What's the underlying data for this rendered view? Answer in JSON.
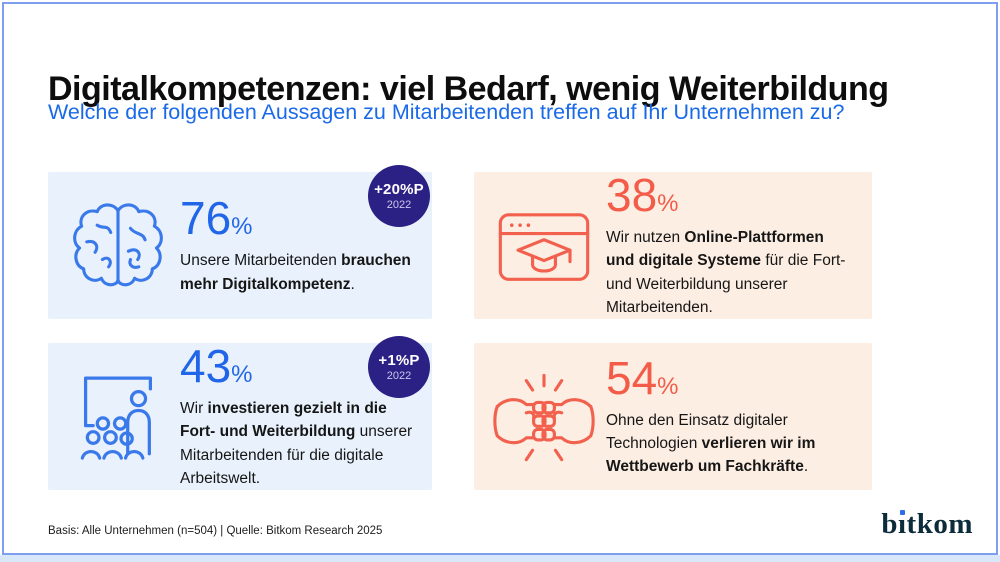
{
  "header": {
    "title": "Digitalkompetenzen: viel Bedarf, wenig Weiterbildung",
    "subtitle": "Welche der folgenden Aussagen zu Mitarbeitenden treffen auf Ihr Unternehmen zu?"
  },
  "chart_data": {
    "type": "table",
    "title": "Digitalkompetenzen: viel Bedarf, wenig Weiterbildung",
    "subtitle": "Welche der folgenden Aussagen zu Mitarbeitenden treffen auf Ihr Unternehmen zu?",
    "categories": [
      "Unsere Mitarbeitenden brauchen mehr Digitalkompetenz.",
      "Wir nutzen Online-Plattformen und digitale Systeme für die Fort- und Weiterbildung unserer Mitarbeitenden.",
      "Wir investieren gezielt in die Fort- und Weiterbildung unserer Mitarbeitenden für die digitale Arbeitswelt.",
      "Ohne den Einsatz digitaler Technologien verlieren wir im Wettbewerb um Fachkräfte."
    ],
    "values": [
      76,
      38,
      43,
      54
    ],
    "unit": "%",
    "change_vs_2022": [
      "+20%P",
      null,
      "+1%P",
      null
    ],
    "source": "Basis: Alle Unternehmen (n=504) | Quelle: Bitkom Research 2025"
  },
  "cards": [
    {
      "icon": "brain-icon",
      "theme": "blue",
      "value": "76",
      "unit": "%",
      "badge": {
        "delta": "+20%P",
        "year": "2022"
      },
      "segments": [
        {
          "t": "Unsere Mitarbeitenden ",
          "b": false
        },
        {
          "t": "brauchen mehr Digitalkompetenz",
          "b": true
        },
        {
          "t": ".",
          "b": false
        }
      ]
    },
    {
      "icon": "online-learning-icon",
      "theme": "coral",
      "value": "38",
      "unit": "%",
      "segments": [
        {
          "t": "Wir nutzen ",
          "b": false
        },
        {
          "t": "Online-Plattformen und digitale Systeme",
          "b": true
        },
        {
          "t": " für die Fort- und Weiterbildung unserer Mitarbeitenden.",
          "b": false
        }
      ]
    },
    {
      "icon": "training-audience-icon",
      "theme": "blue",
      "value": "43",
      "unit": "%",
      "badge": {
        "delta": "+1%P",
        "year": "2022"
      },
      "segments": [
        {
          "t": "Wir ",
          "b": false
        },
        {
          "t": "investieren gezielt in die Fort- und Weiterbildung",
          "b": true
        },
        {
          "t": " unserer Mitarbeitenden für die digitale Arbeitswelt.",
          "b": false
        }
      ]
    },
    {
      "icon": "fist-bump-icon",
      "theme": "coral",
      "value": "54",
      "unit": "%",
      "segments": [
        {
          "t": "Ohne den Einsatz digitaler Technologien ",
          "b": false
        },
        {
          "t": "verlieren wir im Wettbewerb um Fachkräfte",
          "b": true
        },
        {
          "t": ".",
          "b": false
        }
      ]
    }
  ],
  "footer": {
    "source": "Basis: Alle Unternehmen (n=504) | Quelle: Bitkom Research 2025",
    "logo": {
      "label": "bitkom",
      "pre": "b",
      "i_dotless": "ı",
      "rest": "tkom"
    }
  },
  "colors": {
    "accent_blue": "#2166e8",
    "accent_coral": "#f25c49",
    "card_blue_bg": "#e9f2fc",
    "card_peach_bg": "#fdeee3",
    "badge_bg": "#2b2185",
    "subtitle_blue": "#1a6ae8",
    "frame_border": "#7e9ff0",
    "logo_navy": "#0c2b3b",
    "logo_dot_blue": "#2e6ce8"
  }
}
